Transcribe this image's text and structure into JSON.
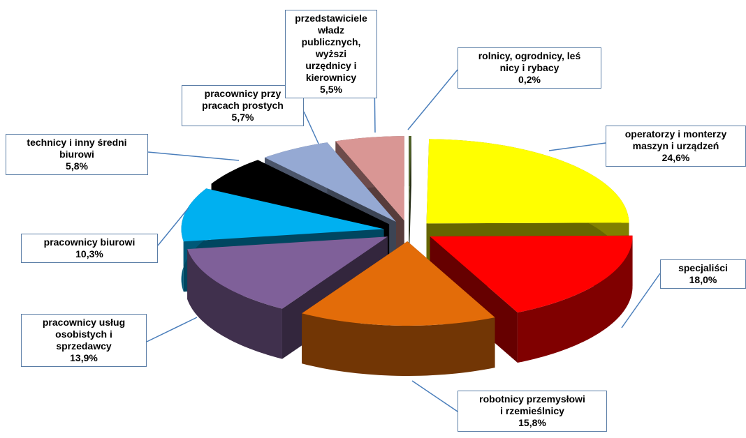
{
  "chart_data": {
    "type": "pie3d",
    "categories": [
      "rolnicy, ogrodnicy, leś\nnicy i rybacy",
      "operatorzy i monterzy\nmaszyn i urządzeń",
      "specjaliści",
      "robotnicy przemysłowi\ni rzemieślnicy",
      "pracownicy usług\nosobistych i\nsprzedawcy",
      "pracownicy biurowi",
      "technicy i inny średni\nbiurowi",
      "pracownicy przy\npracach prostych",
      "przedstawiciele władz\npublicznych, wyższi\nurzędnicy i kierownicy"
    ],
    "values": [
      0.2,
      24.6,
      18.0,
      15.8,
      13.9,
      10.3,
      5.8,
      5.7,
      5.5
    ],
    "value_labels": [
      "0,2%",
      "24,6%",
      "18,0%",
      "15,8%",
      "13,9%",
      "10,3%",
      "5,8%",
      "5,7%",
      "5,5%"
    ],
    "colors": [
      "#4f6228",
      "#ffff00",
      "#ff0000",
      "#e36c09",
      "#7f6099",
      "#00b0f0",
      "#000000",
      "#95a9d3",
      "#d99694"
    ]
  }
}
